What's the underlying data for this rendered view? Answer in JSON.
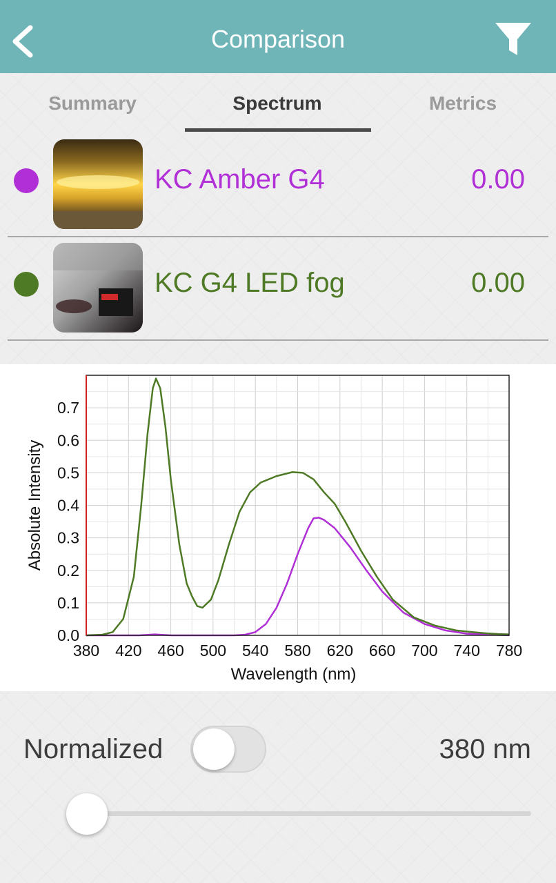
{
  "navbar": {
    "title": "Comparison",
    "back_icon": "chevron-left-icon",
    "filter_icon": "filter-icon",
    "color": "#6fb5b8"
  },
  "tabs": [
    {
      "label": "Summary",
      "active": false
    },
    {
      "label": "Spectrum",
      "active": true
    },
    {
      "label": "Metrics",
      "active": false
    }
  ],
  "items": [
    {
      "name": "KC Amber G4",
      "value": "0.00",
      "color": "#b02fd6"
    },
    {
      "name": "KC G4 LED fog",
      "value": "0.00",
      "color": "#4f7a25"
    }
  ],
  "chart_data": {
    "type": "line",
    "xlabel": "Wavelength (nm)",
    "ylabel": "Absolute Intensity",
    "xlim": [
      380,
      780
    ],
    "ylim": [
      0,
      0.8
    ],
    "xticks": [
      380,
      420,
      460,
      500,
      540,
      580,
      620,
      660,
      700,
      740,
      780
    ],
    "yticks": [
      "0.0",
      "0.1",
      "0.2",
      "0.3",
      "0.4",
      "0.5",
      "0.6",
      "0.7"
    ],
    "grid": true,
    "series": [
      {
        "color": "#b02fd6",
        "points": [
          [
            380,
            0
          ],
          [
            430,
            0
          ],
          [
            445,
            0.003
          ],
          [
            460,
            0
          ],
          [
            520,
            0
          ],
          [
            530,
            0.002
          ],
          [
            540,
            0.01
          ],
          [
            550,
            0.035
          ],
          [
            560,
            0.085
          ],
          [
            570,
            0.16
          ],
          [
            580,
            0.25
          ],
          [
            590,
            0.33
          ],
          [
            595,
            0.36
          ],
          [
            600,
            0.362
          ],
          [
            605,
            0.355
          ],
          [
            615,
            0.33
          ],
          [
            630,
            0.27
          ],
          [
            645,
            0.2
          ],
          [
            660,
            0.135
          ],
          [
            680,
            0.07
          ],
          [
            700,
            0.035
          ],
          [
            720,
            0.015
          ],
          [
            740,
            0.005
          ],
          [
            760,
            0.003
          ],
          [
            780,
            0
          ]
        ]
      },
      {
        "color": "#4f7a25",
        "points": [
          [
            380,
            0
          ],
          [
            395,
            0.002
          ],
          [
            405,
            0.01
          ],
          [
            415,
            0.05
          ],
          [
            425,
            0.18
          ],
          [
            432,
            0.4
          ],
          [
            438,
            0.62
          ],
          [
            443,
            0.76
          ],
          [
            446,
            0.79
          ],
          [
            450,
            0.76
          ],
          [
            455,
            0.64
          ],
          [
            460,
            0.48
          ],
          [
            468,
            0.28
          ],
          [
            475,
            0.16
          ],
          [
            480,
            0.12
          ],
          [
            485,
            0.09
          ],
          [
            490,
            0.085
          ],
          [
            498,
            0.11
          ],
          [
            505,
            0.17
          ],
          [
            515,
            0.28
          ],
          [
            525,
            0.38
          ],
          [
            535,
            0.44
          ],
          [
            545,
            0.47
          ],
          [
            560,
            0.49
          ],
          [
            575,
            0.502
          ],
          [
            585,
            0.5
          ],
          [
            595,
            0.48
          ],
          [
            605,
            0.44
          ],
          [
            615,
            0.405
          ],
          [
            625,
            0.35
          ],
          [
            640,
            0.26
          ],
          [
            655,
            0.18
          ],
          [
            670,
            0.11
          ],
          [
            690,
            0.055
          ],
          [
            710,
            0.03
          ],
          [
            730,
            0.015
          ],
          [
            745,
            0.01
          ],
          [
            760,
            0.006
          ],
          [
            770,
            0.004
          ],
          [
            780,
            0.003
          ]
        ]
      }
    ]
  },
  "controls": {
    "normalized_label": "Normalized",
    "normalized_on": false,
    "wavelength_readout": "380 nm",
    "slider_value": 0
  }
}
